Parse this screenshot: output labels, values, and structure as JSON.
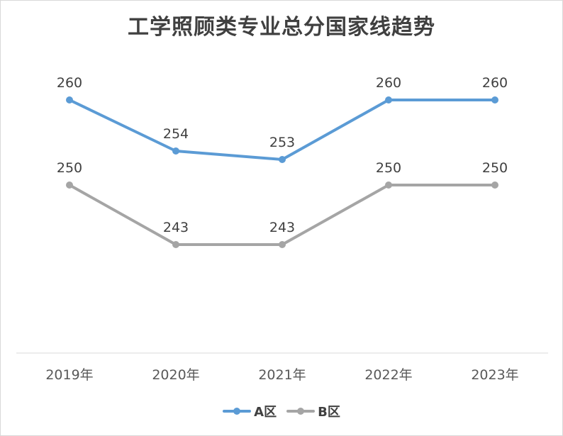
{
  "chart_data": {
    "type": "line",
    "title": "工学照顾类专业总分国家线趋势",
    "categories": [
      "2019年",
      "2020年",
      "2021年",
      "2022年",
      "2023年"
    ],
    "series": [
      {
        "name": "A区",
        "values": [
          260,
          254,
          253,
          260,
          260
        ],
        "color": "#5b9bd5"
      },
      {
        "name": "B区",
        "values": [
          250,
          243,
          243,
          250,
          250
        ],
        "color": "#a5a5a5"
      }
    ],
    "xlabel": "",
    "ylabel": "",
    "ylim": [
      225,
      265
    ],
    "grid": false,
    "data_labels": true,
    "legend_position": "bottom"
  }
}
